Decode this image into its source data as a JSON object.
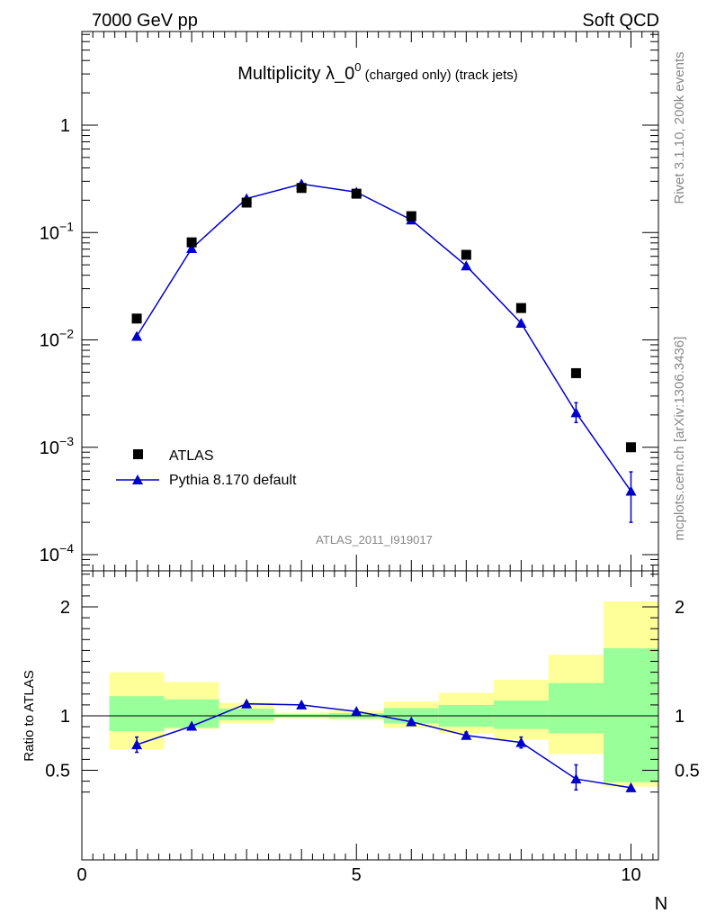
{
  "header": {
    "left": "7000 GeV pp",
    "right": "Soft QCD"
  },
  "title": {
    "main": "Multiplicity λ_0",
    "sup": "0",
    "sub": " (charged only) (track jets)"
  },
  "side_labels": {
    "rivet": "Rivet 3.1.10,  200k events",
    "mcplots": "mcplots.cern.ch [arXiv:1306.3436]"
  },
  "analysis_tag": "ATLAS_2011_I919017",
  "colors": {
    "mc": "#0000cc",
    "band_inner": "#99ff99",
    "band_outer": "#ffff99",
    "data": "#000000"
  },
  "chart_data": [
    {
      "type": "line",
      "panel": "main",
      "yscale": "log",
      "xlim": [
        0,
        10.5
      ],
      "ylim": [
        0.0001,
        10
      ],
      "xlabel": "",
      "ylabel": "",
      "y_ticks": [
        {
          "value": 0.0001,
          "base": "10",
          "exp": "−4"
        },
        {
          "value": 0.001,
          "base": "10",
          "exp": "−3"
        },
        {
          "value": 0.01,
          "base": "10",
          "exp": "−2"
        },
        {
          "value": 0.1,
          "base": "10",
          "exp": "−1"
        },
        {
          "value": 1,
          "base": "1",
          "exp": ""
        }
      ],
      "legend": {
        "position": "bottom-left",
        "entries": [
          "ATLAS",
          "Pythia 8.170 default"
        ]
      },
      "series": [
        {
          "name": "ATLAS",
          "marker": "square",
          "x": [
            1,
            2,
            3,
            4,
            5,
            6,
            7,
            8,
            9,
            10
          ],
          "y": [
            0.0158,
            0.081,
            0.19,
            0.26,
            0.23,
            0.142,
            0.062,
            0.0198,
            0.0049,
            0.001
          ]
        },
        {
          "name": "Pythia 8.170 default",
          "marker": "triangle",
          "x": [
            1,
            2,
            3,
            4,
            5,
            6,
            7,
            8,
            9,
            10
          ],
          "y": [
            0.0108,
            0.071,
            0.207,
            0.283,
            0.238,
            0.131,
            0.049,
            0.0143,
            0.0021,
            0.00039
          ],
          "yerr_low": [
            0.0006,
            0.002,
            0.003,
            0.004,
            0.003,
            0.003,
            0.002,
            0.0007,
            0.0004,
            0.00019
          ],
          "yerr_high": [
            0.0006,
            0.002,
            0.003,
            0.004,
            0.003,
            0.003,
            0.002,
            0.0007,
            0.0005,
            0.0002
          ]
        }
      ]
    },
    {
      "type": "line",
      "panel": "ratio",
      "xlim": [
        0,
        10.5
      ],
      "ylim": [
        0.35,
        2.3
      ],
      "xlabel": "N",
      "ylabel": "Ratio to ATLAS",
      "x_ticks": [
        0,
        5,
        10
      ],
      "y_ticks": [
        0.5,
        1,
        2
      ],
      "bands": {
        "edges": [
          0.5,
          1.5,
          2.5,
          3.5,
          4.5,
          5.5,
          6.5,
          7.5,
          8.5,
          9.5,
          10.5
        ],
        "inner_low": [
          0.86,
          0.89,
          0.96,
          0.985,
          0.975,
          0.93,
          0.9,
          0.88,
          0.84,
          0.39
        ],
        "inner_high": [
          1.18,
          1.15,
          1.065,
          1.015,
          1.025,
          1.07,
          1.1,
          1.14,
          1.3,
          1.62
        ],
        "outer_low": [
          0.69,
          0.88,
          0.93,
          0.975,
          0.96,
          0.89,
          0.84,
          0.78,
          0.65,
          0.35
        ],
        "outer_high": [
          1.4,
          1.31,
          1.12,
          1.03,
          1.05,
          1.13,
          1.21,
          1.33,
          1.56,
          2.05
        ]
      },
      "series": [
        {
          "name": "Pythia 8.170 default",
          "x": [
            1,
            2,
            3,
            4,
            5,
            6,
            7,
            8,
            9,
            10
          ],
          "y": [
            0.735,
            0.905,
            1.11,
            1.1,
            1.04,
            0.945,
            0.82,
            0.755,
            0.42,
            0.34
          ],
          "yerr_low": [
            0.07,
            0.02,
            0.015,
            0.012,
            0.012,
            0.02,
            0.03,
            0.05,
            0.1,
            0.0
          ],
          "yerr_high": [
            0.07,
            0.02,
            0.015,
            0.012,
            0.012,
            0.02,
            0.03,
            0.05,
            0.13,
            0.0
          ]
        }
      ]
    }
  ]
}
